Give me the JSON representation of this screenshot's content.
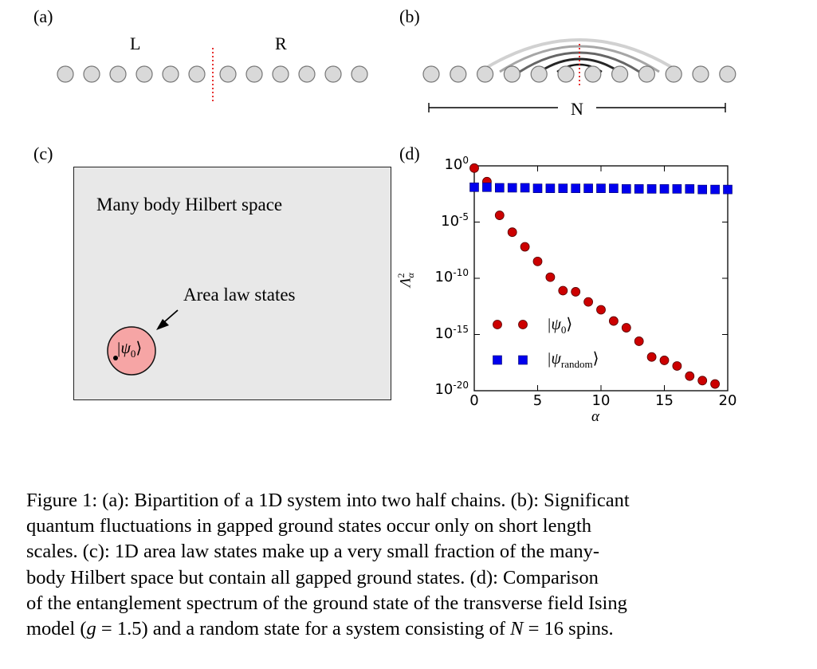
{
  "panel_a": {
    "label": "(a)",
    "left_label": "L",
    "right_label": "R"
  },
  "panel_b": {
    "label": "(b)",
    "length_label": "N"
  },
  "panel_c": {
    "label": "(c)",
    "title": "Many body Hilbert space",
    "region_label": "Area law states",
    "state_label": "|ψ",
    "state_sub": "0",
    "state_close": "⟩",
    "colors": {
      "box_fill": "#e8e8e8",
      "circle_fill": "#f6a5a5"
    }
  },
  "panel_d": {
    "label": "(d)",
    "y_tick_base": "10",
    "y_tick_exps": [
      "0",
      "-5",
      "-10",
      "-15",
      "-20"
    ],
    "x_ticks": [
      "0",
      "5",
      "10",
      "15",
      "20"
    ],
    "xlabel": "α",
    "ylabel_main": "Λ",
    "ylabel_sup": "2",
    "ylabel_sub": "α",
    "legend": [
      {
        "pre": "|ψ",
        "sub": "0",
        "post": "⟩"
      },
      {
        "pre": "|ψ",
        "sub": "random",
        "post": "⟩"
      }
    ]
  },
  "chart_data": {
    "type": "scatter",
    "xlabel": "α",
    "ylabel": "Λα²",
    "xlim": [
      0,
      20
    ],
    "ylim_log10": [
      -20,
      0
    ],
    "yscale": "log",
    "grid": false,
    "legend_position": "lower-left",
    "series": [
      {
        "name": "|ψ0⟩",
        "marker": "circle",
        "color": "#cc0000",
        "x": [
          0,
          1,
          2,
          3,
          4,
          5,
          6,
          7,
          8,
          9,
          10,
          11,
          12,
          13,
          14,
          15,
          16,
          17,
          18,
          19
        ],
        "log10_y": [
          -0.2,
          -1.4,
          -4.4,
          -5.9,
          -7.2,
          -8.5,
          -9.9,
          -11.1,
          -11.2,
          -12.1,
          -12.8,
          -13.8,
          -14.4,
          -15.6,
          -17.0,
          -17.3,
          -17.8,
          -18.7,
          -19.1,
          -19.4
        ]
      },
      {
        "name": "|ψrandom⟩",
        "marker": "square",
        "color": "#0000ee",
        "x": [
          0,
          1,
          2,
          3,
          4,
          5,
          6,
          7,
          8,
          9,
          10,
          11,
          12,
          13,
          14,
          15,
          16,
          17,
          18,
          19,
          20
        ],
        "log10_y": [
          -1.9,
          -1.9,
          -1.95,
          -1.95,
          -1.95,
          -2.0,
          -2.0,
          -2.0,
          -2.0,
          -2.0,
          -2.0,
          -2.0,
          -2.05,
          -2.05,
          -2.05,
          -2.05,
          -2.05,
          -2.05,
          -2.1,
          -2.1,
          -2.1
        ]
      }
    ]
  },
  "caption": {
    "line1": "Figure 1: (a): Bipartition of a 1D system into two half chains. (b): Significant",
    "line2": "quantum fluctuations in gapped ground states occur only on short length",
    "line3": "scales. (c): 1D area law states make up a very small fraction of the many-",
    "line4": "body Hilbert space but contain all gapped ground states. (d): Comparison",
    "line5": "of the entanglement spectrum of the ground state of the transverse field Ising",
    "line6_pre": "model (",
    "line6_g": "g",
    "line6_mid": " = 1.5) and a random state for a system consisting of ",
    "line6_N": "N",
    "line6_post": " = 16 spins."
  }
}
